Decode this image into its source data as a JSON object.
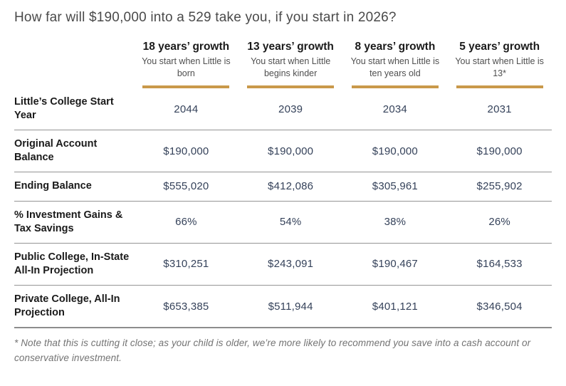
{
  "page": {
    "title": "How far will $190,000 into a 529 take you, if you start in 2026?"
  },
  "colors": {
    "accent_gold": "#c9994a",
    "value_navy": "#35425a",
    "divider_gray": "#949494",
    "label_black": "#1a1a1a",
    "footnote_gray": "#737373"
  },
  "table": {
    "columns": [
      {
        "title": "18 years’ growth",
        "subtitle": "You start when Little is born"
      },
      {
        "title": "13 years’ growth",
        "subtitle": "You start when Little begins kinder"
      },
      {
        "title": "8 years’ growth",
        "subtitle": "You start when Little is ten years old"
      },
      {
        "title": "5 years’ growth",
        "subtitle": "You start when Little is 13*"
      }
    ],
    "rows": [
      {
        "label": "Little’s College Start Year",
        "values": [
          "2044",
          "2039",
          "2034",
          "2031"
        ]
      },
      {
        "label": "Original Account Balance",
        "values": [
          "$190,000",
          "$190,000",
          "$190,000",
          "$190,000"
        ]
      },
      {
        "label": "Ending Balance",
        "values": [
          "$555,020",
          "$412,086",
          "$305,961",
          "$255,902"
        ]
      },
      {
        "label": "% Investment Gains & Tax Savings",
        "values": [
          "66%",
          "54%",
          "38%",
          "26%"
        ]
      },
      {
        "label": "Public College, In-State All-In Projection",
        "values": [
          "$310,251",
          "$243,091",
          "$190,467",
          "$164,533"
        ]
      },
      {
        "label": "Private College, All-In Projection",
        "values": [
          "$653,385",
          "$511,944",
          "$401,121",
          "$346,504"
        ]
      }
    ]
  },
  "footnote": "* Note that this is cutting it close; as your child is older, we’re more likely to recommend you save into a cash account or conservative investment.",
  "chart_data": {
    "type": "table",
    "title": "How far will $190,000 into a 529 take you, if you start in 2026?",
    "categories": [
      "18 years’ growth (start when Little is born)",
      "13 years’ growth (start when Little begins kinder)",
      "8 years’ growth (start when Little is ten years old)",
      "5 years’ growth (start when Little is 13*)"
    ],
    "series": [
      {
        "name": "Little’s College Start Year",
        "values": [
          2044,
          2039,
          2034,
          2031
        ]
      },
      {
        "name": "Original Account Balance ($)",
        "values": [
          190000,
          190000,
          190000,
          190000
        ]
      },
      {
        "name": "Ending Balance ($)",
        "values": [
          555020,
          412086,
          305961,
          255902
        ]
      },
      {
        "name": "% Investment Gains & Tax Savings",
        "values": [
          66,
          54,
          38,
          26
        ]
      },
      {
        "name": "Public College, In-State All-In Projection ($)",
        "values": [
          310251,
          243091,
          190467,
          164533
        ]
      },
      {
        "name": "Private College, All-In Projection ($)",
        "values": [
          653385,
          511944,
          401121,
          346504
        ]
      }
    ],
    "footnote": "* Note that this is cutting it close; as your child is older, we’re more likely to recommend you save into a cash account or conservative investment."
  }
}
